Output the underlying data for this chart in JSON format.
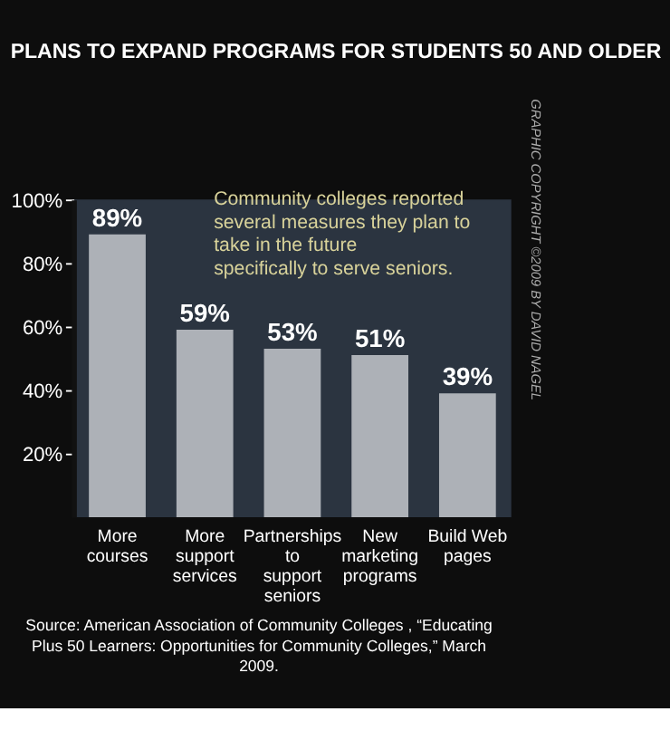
{
  "chart_data": {
    "type": "bar",
    "title": "PLANS TO EXPAND PROGRAMS FOR STUDENTS 50 AND OLDER",
    "categories": [
      "More courses",
      "More support services",
      "Partnerships to support seniors",
      "New marketing programs",
      "Build Web pages"
    ],
    "values": [
      89,
      59,
      53,
      51,
      39
    ],
    "value_labels": [
      "89%",
      "59%",
      "53%",
      "51%",
      "39%"
    ],
    "color": "#c4c8cc",
    "ylim": [
      0,
      100
    ],
    "yticks": [
      {
        "value": 20,
        "label": "20%"
      },
      {
        "value": 40,
        "label": "40%"
      },
      {
        "value": 60,
        "label": "60%"
      },
      {
        "value": 80,
        "label": "80%"
      },
      {
        "value": 100,
        "label": "100%"
      }
    ],
    "grid": false,
    "annotations": [
      "Community colleges reported several measures they plan to take in the future specifically to serve seniors.",
      "Source:  American Association of Community Colleges , “Educating Plus 50 Learners: Opportunities for Community Colleges,” March 2009.",
      "GRAPHIC COPYRIGHT ©2009 BY DAVID NAGEL"
    ]
  }
}
